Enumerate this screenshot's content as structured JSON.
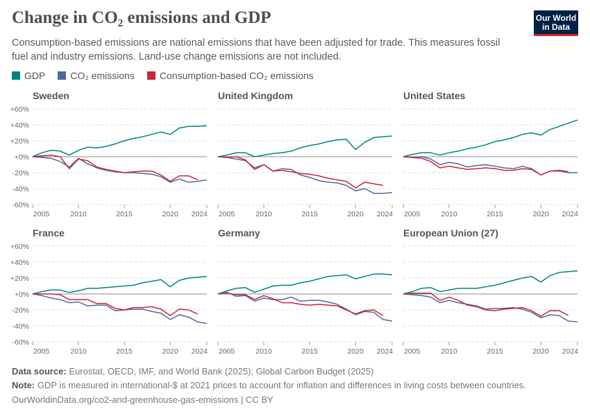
{
  "header": {
    "title": "Change in CO₂ emissions and GDP",
    "subtitle": "Consumption-based emissions are national emissions that have been adjusted for trade. This measures fossil fuel and industry emissions. Land-use change emissions are not included.",
    "logo": "Our World in Data"
  },
  "legend": [
    {
      "label": "GDP",
      "color": "#00847e"
    },
    {
      "label": "CO₂ emissions",
      "color": "#4c6a9c"
    },
    {
      "label": "Consumption-based CO₂ emissions",
      "color": "#c8243a"
    }
  ],
  "chart_data": {
    "type": "line",
    "x": [
      2005,
      2006,
      2007,
      2008,
      2009,
      2010,
      2011,
      2012,
      2013,
      2014,
      2015,
      2016,
      2017,
      2018,
      2019,
      2020,
      2021,
      2022,
      2023,
      2024
    ],
    "xticks": [
      "2005",
      "2010",
      "2015",
      "2020",
      "2024"
    ],
    "yticks": [
      "+60%",
      "+40%",
      "+20%",
      "+0%",
      "-20%",
      "-40%",
      "-60%"
    ],
    "ylim": [
      -60,
      60
    ],
    "grid": true,
    "legend_position": "top-left",
    "panels": [
      {
        "title": "Sweden",
        "series": [
          {
            "name": "GDP",
            "values": [
              0,
              5,
              8,
              7,
              2,
              8,
              12,
              11,
              13,
              16,
              20,
              23,
              25,
              28,
              31,
              28,
              36,
              38,
              38,
              39
            ]
          },
          {
            "name": "CO₂ emissions",
            "values": [
              0,
              -1,
              -2,
              -6,
              -13,
              -2,
              -9,
              -14,
              -17,
              -19,
              -20,
              -20,
              -21,
              -22,
              -25,
              -32,
              -28,
              -32,
              -31,
              -29
            ]
          },
          {
            "name": "Consumption-based CO₂ emissions",
            "values": [
              0,
              1,
              2,
              0,
              -15,
              -3,
              -5,
              -13,
              -16,
              -18,
              -20,
              -19,
              -18,
              -18,
              -23,
              -31,
              -24,
              -24,
              -29
            ]
          }
        ]
      },
      {
        "title": "United Kingdom",
        "series": [
          {
            "name": "GDP",
            "values": [
              0,
              2,
              5,
              5,
              0,
              2,
              4,
              5,
              7,
              11,
              14,
              16,
              19,
              21,
              22,
              9,
              18,
              24,
              25,
              26
            ]
          },
          {
            "name": "CO₂ emissions",
            "values": [
              0,
              -1,
              -3,
              -5,
              -14,
              -10,
              -18,
              -15,
              -16,
              -23,
              -26,
              -30,
              -32,
              -33,
              -36,
              -43,
              -40,
              -46,
              -46,
              -45
            ]
          },
          {
            "name": "Consumption-based CO₂ emissions",
            "values": [
              0,
              -1,
              0,
              -4,
              -16,
              -10,
              -18,
              -17,
              -19,
              -21,
              -22,
              -24,
              -27,
              -29,
              -31,
              -39,
              -32,
              -34,
              -36
            ]
          }
        ]
      },
      {
        "title": "United States",
        "series": [
          {
            "name": "GDP",
            "values": [
              0,
              3,
              5,
              5,
              2,
              5,
              7,
              10,
              12,
              15,
              19,
              21,
              24,
              28,
              30,
              27,
              34,
              38,
              42,
              46
            ]
          },
          {
            "name": "CO₂ emissions",
            "values": [
              0,
              -1,
              0,
              -3,
              -10,
              -7,
              -9,
              -13,
              -11,
              -10,
              -12,
              -14,
              -15,
              -12,
              -15,
              -23,
              -18,
              -18,
              -20,
              -20
            ]
          },
          {
            "name": "Consumption-based CO₂ emissions",
            "values": [
              0,
              -1,
              -2,
              -6,
              -14,
              -12,
              -14,
              -16,
              -15,
              -14,
              -15,
              -17,
              -17,
              -15,
              -16,
              -23,
              -18,
              -17,
              -19
            ]
          }
        ]
      },
      {
        "title": "France",
        "series": [
          {
            "name": "GDP",
            "values": [
              0,
              3,
              5,
              5,
              2,
              4,
              7,
              7,
              8,
              9,
              10,
              11,
              14,
              16,
              18,
              9,
              17,
              20,
              21,
              22
            ]
          },
          {
            "name": "CO₂ emissions",
            "values": [
              0,
              -2,
              -5,
              -7,
              -11,
              -10,
              -15,
              -14,
              -14,
              -21,
              -20,
              -19,
              -19,
              -22,
              -24,
              -32,
              -26,
              -29,
              -35,
              -37
            ]
          },
          {
            "name": "Consumption-based CO₂ emissions",
            "values": [
              0,
              0,
              0,
              -1,
              -7,
              -7,
              -7,
              -12,
              -12,
              -18,
              -20,
              -17,
              -17,
              -16,
              -19,
              -27,
              -19,
              -20,
              -25
            ]
          }
        ]
      },
      {
        "title": "Germany",
        "series": [
          {
            "name": "GDP",
            "values": [
              0,
              4,
              7,
              8,
              2,
              6,
              10,
              11,
              11,
              14,
              16,
              19,
              22,
              23,
              24,
              19,
              22,
              25,
              25,
              24
            ]
          },
          {
            "name": "CO₂ emissions",
            "values": [
              0,
              2,
              -3,
              -2,
              -9,
              -5,
              -7,
              -7,
              -4,
              -9,
              -8,
              -8,
              -10,
              -13,
              -19,
              -26,
              -22,
              -23,
              -32,
              -34
            ]
          },
          {
            "name": "Consumption-based CO₂ emissions",
            "values": [
              0,
              1,
              -1,
              -1,
              -7,
              -2,
              -6,
              -11,
              -11,
              -13,
              -14,
              -13,
              -14,
              -15,
              -20,
              -25,
              -21,
              -20,
              -27
            ]
          }
        ]
      },
      {
        "title": "European Union (27)",
        "series": [
          {
            "name": "GDP",
            "values": [
              0,
              3,
              7,
              8,
              3,
              5,
              7,
              7,
              7,
              9,
              11,
              14,
              17,
              20,
              22,
              15,
              23,
              27,
              28,
              29
            ]
          },
          {
            "name": "CO₂ emissions",
            "values": [
              0,
              -1,
              -2,
              -4,
              -11,
              -8,
              -11,
              -13,
              -15,
              -19,
              -18,
              -18,
              -17,
              -19,
              -23,
              -30,
              -26,
              -27,
              -34,
              -35
            ]
          },
          {
            "name": "Consumption-based CO₂ emissions",
            "values": [
              0,
              1,
              1,
              1,
              -8,
              -4,
              -8,
              -14,
              -16,
              -20,
              -21,
              -19,
              -18,
              -17,
              -21,
              -28,
              -21,
              -21,
              -27
            ]
          }
        ]
      }
    ]
  },
  "footer": {
    "source_label": "Data source:",
    "source": " Eurostat, OECD, IMF, and World Bank (2025); Global Carbon Budget (2025)",
    "note_label": "Note:",
    "note": " GDP is measured in international-$ at 2021 prices to account for inflation and differences in living costs between countries.",
    "url": "OurWorldinData.org/co2-and-greenhouse-gas-emissions | CC BY"
  }
}
